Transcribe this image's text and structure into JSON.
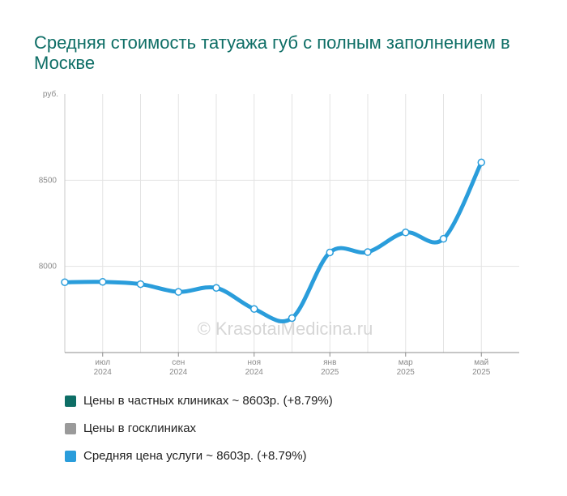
{
  "title": "Средняя стоимость татуажа губ с полным заполнением в Москве",
  "watermark": "© KrasotaiMedicina.ru",
  "chart_data": {
    "type": "line",
    "y_unit": "руб.",
    "ylim": [
      7500,
      9000
    ],
    "yticks": [
      8000,
      8500
    ],
    "x": [
      "2024-05",
      "2024-06",
      "2024-07",
      "2024-08",
      "2024-09",
      "2024-10",
      "2024-11",
      "2024-12",
      "2025-01",
      "2025-02",
      "2025-03",
      "2025-04",
      "2025-05"
    ],
    "xtick_labels": [
      {
        "month": "июл",
        "year": "2024",
        "index": 1
      },
      {
        "month": "сен",
        "year": "2024",
        "index": 3
      },
      {
        "month": "ноя",
        "year": "2024",
        "index": 5
      },
      {
        "month": "янв",
        "year": "2025",
        "index": 7
      },
      {
        "month": "мар",
        "year": "2025",
        "index": 9
      },
      {
        "month": "май",
        "year": "2025",
        "index": 11
      }
    ],
    "series": [
      {
        "name": "Средняя цена услуги",
        "color": "#2a9ddb",
        "values": [
          7908,
          7910,
          7897,
          7852,
          7875,
          7753,
          7700,
          8081,
          8083,
          8197,
          8160,
          8603,
          null
        ]
      }
    ],
    "grid": true
  },
  "legend": [
    {
      "label": "Цены в частных клиниках ~ 8603р. (+8.79%)",
      "color": "#0e6e66"
    },
    {
      "label": "Цены в госклиниках",
      "color": "#9a9a9a"
    },
    {
      "label": "Средняя цена услуги ~ 8603р. (+8.79%)",
      "color": "#2a9ddb"
    }
  ]
}
